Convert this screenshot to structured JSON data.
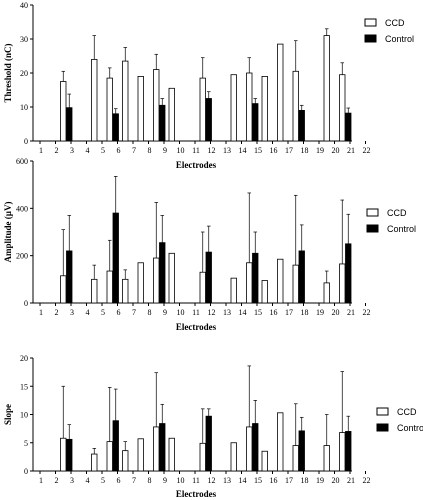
{
  "chart_data": [
    {
      "type": "bar",
      "ylabel": "Threshold (nC)",
      "xlabel": "Electrodes",
      "ylim": [
        0,
        40
      ],
      "yticks": [
        0,
        10,
        20,
        30,
        40
      ],
      "categories": [
        "1",
        "2",
        "3",
        "4",
        "5",
        "6",
        "7",
        "8",
        "9",
        "10",
        "11",
        "12",
        "13",
        "14",
        "15",
        "16",
        "17",
        "18",
        "19",
        "20",
        "21",
        "22"
      ],
      "legend": {
        "position": "top-right",
        "entries": [
          "CCD",
          "Control"
        ]
      },
      "series": [
        {
          "name": "CCD",
          "fill": "#ffffff",
          "values": [
            null,
            null,
            17.5,
            null,
            24,
            18.5,
            23.5,
            19,
            21,
            15.5,
            null,
            18.5,
            null,
            19.5,
            20,
            19,
            28.5,
            20.5,
            null,
            31,
            19.5,
            null
          ],
          "errors": [
            null,
            null,
            3,
            null,
            7,
            3,
            4,
            null,
            4.5,
            null,
            null,
            6,
            null,
            null,
            4.5,
            null,
            null,
            9,
            null,
            2,
            3.5,
            null
          ]
        },
        {
          "name": "Control",
          "fill": "#000000",
          "values": [
            null,
            null,
            9.8,
            null,
            null,
            8,
            null,
            null,
            10.5,
            null,
            null,
            12.5,
            null,
            null,
            11,
            null,
            null,
            9,
            null,
            null,
            8.2,
            null
          ],
          "errors": [
            null,
            null,
            4,
            null,
            null,
            1.5,
            null,
            null,
            2,
            null,
            null,
            2,
            null,
            null,
            1.5,
            null,
            null,
            1.5,
            null,
            null,
            1.5,
            null
          ]
        }
      ]
    },
    {
      "type": "bar",
      "ylabel": "Amplitude (µV)",
      "xlabel": "Electrodes",
      "ylim": [
        0,
        600
      ],
      "yticks": [
        0,
        200,
        400,
        600
      ],
      "categories": [
        "1",
        "2",
        "3",
        "4",
        "5",
        "6",
        "7",
        "8",
        "9",
        "10",
        "11",
        "12",
        "13",
        "14",
        "15",
        "16",
        "17",
        "18",
        "19",
        "20",
        "21",
        "22"
      ],
      "legend": {
        "position": "top-right",
        "entries": [
          "CCD",
          "Control"
        ]
      },
      "series": [
        {
          "name": "CCD",
          "fill": "#ffffff",
          "values": [
            null,
            null,
            115,
            null,
            100,
            135,
            100,
            170,
            190,
            210,
            null,
            130,
            null,
            105,
            170,
            95,
            185,
            160,
            null,
            85,
            165,
            null
          ],
          "errors": [
            null,
            null,
            195,
            null,
            60,
            130,
            40,
            null,
            235,
            null,
            null,
            170,
            null,
            null,
            295,
            null,
            null,
            295,
            null,
            50,
            270,
            null
          ]
        },
        {
          "name": "Control",
          "fill": "#000000",
          "values": [
            null,
            null,
            220,
            null,
            null,
            380,
            null,
            null,
            255,
            null,
            null,
            215,
            null,
            null,
            210,
            null,
            null,
            220,
            null,
            null,
            250,
            null
          ],
          "errors": [
            null,
            null,
            150,
            null,
            null,
            155,
            null,
            null,
            115,
            null,
            null,
            110,
            null,
            null,
            90,
            null,
            null,
            110,
            null,
            null,
            125,
            null
          ]
        }
      ]
    },
    {
      "type": "bar",
      "ylabel": "Slope",
      "xlabel": "Electrodes",
      "ylim": [
        0,
        20
      ],
      "yticks": [
        0,
        5,
        10,
        15,
        20
      ],
      "categories": [
        "1",
        "2",
        "3",
        "4",
        "5",
        "6",
        "7",
        "8",
        "9",
        "10",
        "11",
        "12",
        "13",
        "14",
        "15",
        "16",
        "17",
        "18",
        "19",
        "20",
        "21",
        "22"
      ],
      "legend": {
        "position": "top-right",
        "entries": [
          "CCD",
          "Control"
        ]
      },
      "series": [
        {
          "name": "CCD",
          "fill": "#ffffff",
          "values": [
            null,
            null,
            5.8,
            null,
            3,
            5.2,
            3.6,
            5.7,
            7.8,
            5.8,
            null,
            4.9,
            null,
            5,
            7.8,
            3.5,
            10.3,
            4.5,
            null,
            4.5,
            6.8,
            null
          ],
          "errors": [
            null,
            null,
            9.2,
            null,
            1,
            9.6,
            1.6,
            null,
            9.6,
            null,
            null,
            6.1,
            null,
            null,
            10.8,
            null,
            null,
            7.4,
            null,
            5.5,
            10.8,
            null
          ]
        },
        {
          "name": "Control",
          "fill": "#000000",
          "values": [
            null,
            null,
            5.6,
            null,
            null,
            8.9,
            null,
            null,
            8.4,
            null,
            null,
            9.7,
            null,
            null,
            8.4,
            null,
            null,
            7.1,
            null,
            null,
            7,
            null
          ],
          "errors": [
            null,
            null,
            2.6,
            null,
            null,
            5.6,
            null,
            null,
            3.4,
            null,
            null,
            1.3,
            null,
            null,
            4.1,
            null,
            null,
            2.4,
            null,
            null,
            2.7,
            null
          ]
        }
      ]
    }
  ]
}
